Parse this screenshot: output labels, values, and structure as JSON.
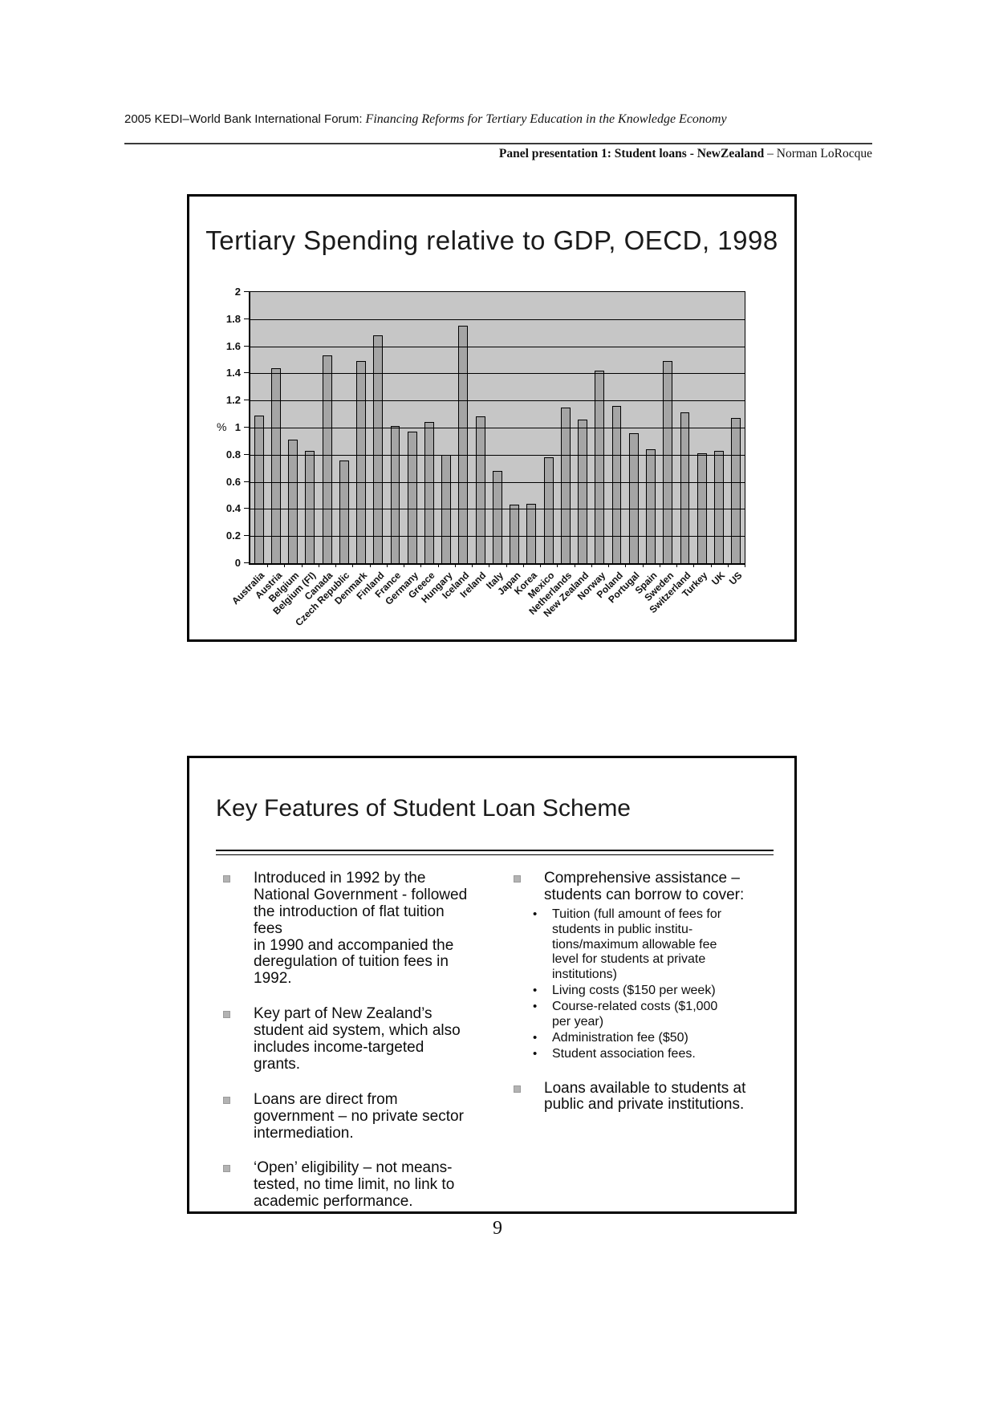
{
  "header": {
    "forum": "2005 KEDI–World Bank International Forum:",
    "forum_subtitle": " Financing Reforms for Tertiary Education in the Knowledge Economy",
    "panel_bold": "Panel presentation 1: Student loans - NewZealand",
    "panel_author": " – Norman LoRocque"
  },
  "slide1": {
    "title": "Tertiary Spending relative to GDP, OECD, 1998"
  },
  "chart_data": {
    "type": "bar",
    "title": "Tertiary Spending relative to GDP, OECD, 1998",
    "xlabel": "",
    "ylabel": "%",
    "ylim": [
      0,
      2
    ],
    "ytick_step": 0.2,
    "grid": true,
    "legend": false,
    "plot_bg": "#c6c6c6",
    "bar_color": "#a5a5a5",
    "categories": [
      "Australia",
      "Austria",
      "Belgium",
      "Belgium (Fl)",
      "Canada",
      "Czech Republic",
      "Denmark",
      "Finland",
      "France",
      "Germany",
      "Greece",
      "Hungary",
      "Iceland",
      "Ireland",
      "Italy",
      "Japan",
      "Korea",
      "Mexico",
      "Netherlands",
      "New Zealand",
      "Norway",
      "Poland",
      "Portugal",
      "Spain",
      "Sweden",
      "Switzerland",
      "Turkey",
      "UK",
      "US"
    ],
    "values": [
      1.09,
      1.44,
      0.91,
      0.83,
      1.53,
      0.76,
      1.49,
      1.68,
      1.01,
      0.97,
      1.04,
      0.8,
      1.75,
      1.08,
      0.68,
      0.43,
      0.44,
      0.78,
      1.15,
      1.06,
      1.42,
      1.16,
      0.96,
      0.84,
      1.49,
      1.11,
      0.81,
      0.83,
      1.07
    ]
  },
  "slide2": {
    "title": "Key Features of Student Loan Scheme",
    "left_bullets": [
      "Introduced in 1992 by the\nNational Government - followed\nthe introduction of flat tuition fees\nin 1990 and accompanied the\nderegulation of tuition fees in\n1992.",
      "Key part of New Zealand’s\nstudent aid system, which also\nincludes income-targeted grants.",
      "Loans are direct from\ngovernment – no private sector\nintermediation.",
      "‘Open’ eligibility – not means-\ntested, no time limit, no link to\nacademic performance."
    ],
    "right_bullets": [
      {
        "text": "Comprehensive assistance –\nstudents can borrow to cover:",
        "sub": [
          "Tuition (full amount of fees for\nstudents in public institu-\ntions/maximum allowable fee\nlevel for students at private\ninstitutions)",
          "Living costs ($150 per week)",
          "Course-related costs ($1,000\nper year)",
          "Administration fee ($50)",
          "Student association fees."
        ]
      },
      {
        "text": "Loans available to students at\npublic and private institutions.",
        "sub": []
      }
    ]
  },
  "page_number": "9"
}
